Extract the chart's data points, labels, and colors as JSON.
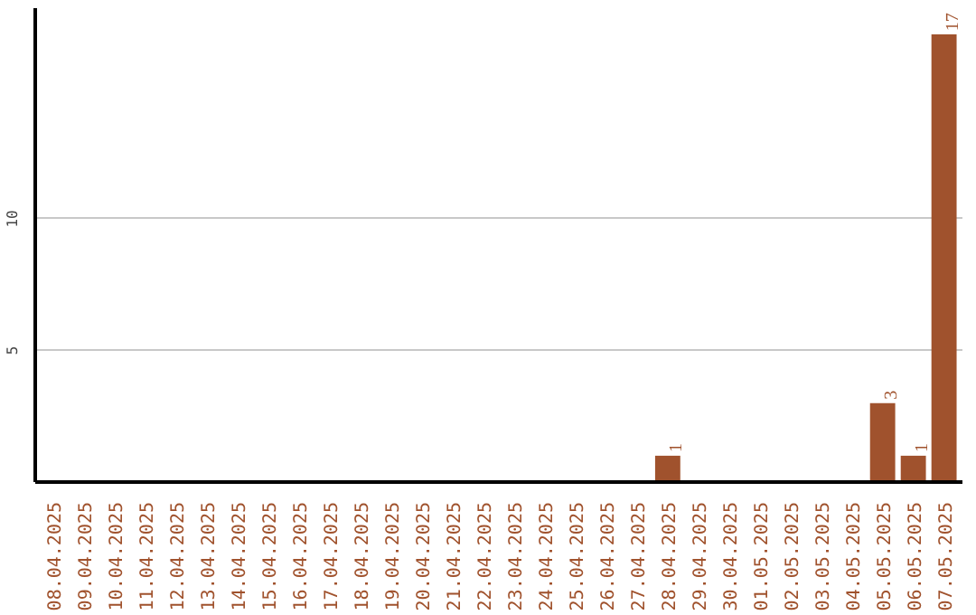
{
  "chart_data": {
    "type": "bar",
    "categories": [
      "08.04.2025",
      "09.04.2025",
      "10.04.2025",
      "11.04.2025",
      "12.04.2025",
      "13.04.2025",
      "14.04.2025",
      "15.04.2025",
      "16.04.2025",
      "17.04.2025",
      "18.04.2025",
      "19.04.2025",
      "20.04.2025",
      "21.04.2025",
      "22.04.2025",
      "23.04.2025",
      "24.04.2025",
      "25.04.2025",
      "26.04.2025",
      "27.04.2025",
      "28.04.2025",
      "29.04.2025",
      "30.04.2025",
      "01.05.2025",
      "02.05.2025",
      "03.05.2025",
      "04.05.2025",
      "05.05.2025",
      "06.05.2025",
      "07.05.2025"
    ],
    "values": [
      0,
      0,
      0,
      0,
      0,
      0,
      0,
      0,
      0,
      0,
      0,
      0,
      0,
      0,
      0,
      0,
      0,
      0,
      0,
      0,
      1,
      0,
      0,
      0,
      0,
      0,
      0,
      3,
      1,
      17
    ],
    "value_labels": [
      null,
      null,
      null,
      null,
      null,
      null,
      null,
      null,
      null,
      null,
      null,
      null,
      null,
      null,
      null,
      null,
      null,
      null,
      null,
      null,
      "1",
      null,
      null,
      null,
      null,
      null,
      null,
      "3",
      "1",
      "17"
    ],
    "color": "#a0522d",
    "ylim": [
      0,
      18
    ],
    "yticks": [
      5,
      10
    ],
    "grid": "y"
  }
}
